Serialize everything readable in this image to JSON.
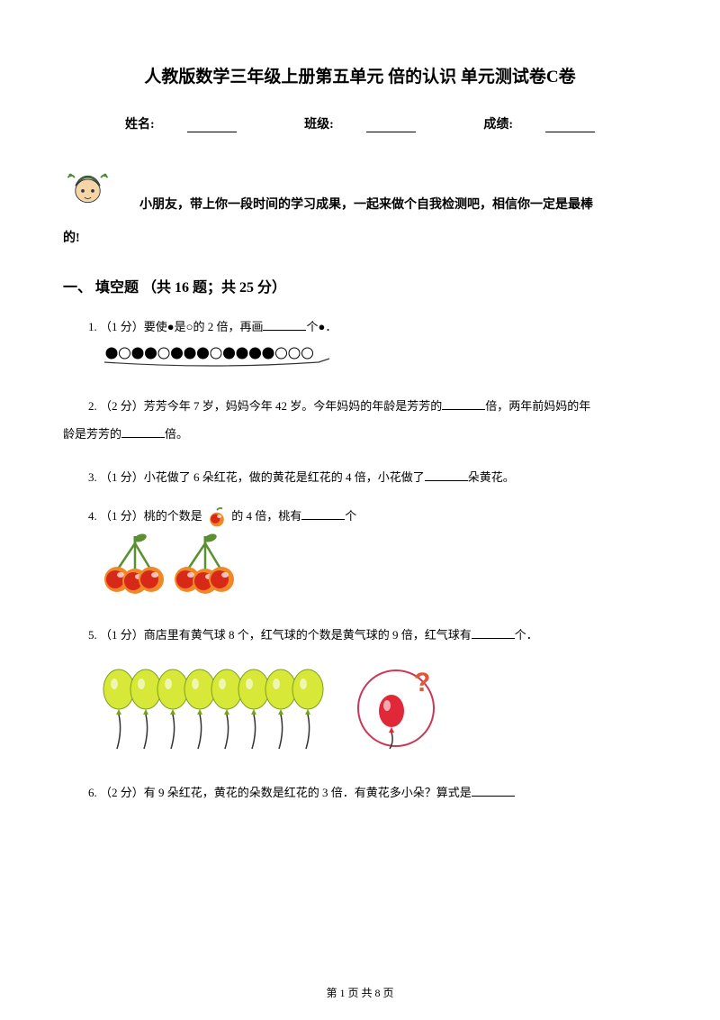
{
  "title": "人教版数学三年级上册第五单元 倍的认识 单元测试卷C卷",
  "info": {
    "name": "姓名:",
    "class": "班级:",
    "score": "成绩:"
  },
  "mascot_text": "小朋友，带上你一段时间的学习成果，一起来做个自我检测吧，相信你一定是最棒",
  "mascot_tail": "的!",
  "section1": "一、 填空题 （共 16 题；共 25 分）",
  "q1": {
    "prefix": "1. （1 分）要使●是○的 2 倍，再画",
    "suffix": "个●．"
  },
  "q2": {
    "p1a": "2.  （2 分）芳芳今年 7 岁，妈妈今年 42 岁。今年妈妈的年龄是芳芳的",
    "p1b": "倍，两年前妈妈的年",
    "p2a": "龄是芳芳的",
    "p2b": "倍。"
  },
  "q3": {
    "a": "3. （1 分）小花做了 6 朵红花，做的黄花是红花的 4 倍，小花做了",
    "b": "朵黄花。"
  },
  "q4": {
    "a": "4. （1 分）桃的个数是 ",
    "b": " 的 4 倍，桃有",
    "c": "个"
  },
  "q5": {
    "a": "5. （1 分）商店里有黄气球 8 个，红气球的个数是黄气球的 9 倍，红气球有",
    "b": "个．"
  },
  "q6": {
    "a": "6. （2 分）有 9 朵红花，黄花的朵数是红花的 3 倍．有黄花多小朵？算式是"
  },
  "footer": "第 1 页 共 8 页",
  "colors": {
    "mascot_face": "#f5d5a8",
    "mascot_cap": "#4a8b3a",
    "cherry_red": "#d82818",
    "cherry_orange": "#f08828",
    "cherry_green": "#5a9030",
    "balloon_yellow": "#d8e838",
    "balloon_green_shadow": "#7aa020",
    "balloon_red": "#e02838",
    "circle_outline": "#c83858"
  }
}
